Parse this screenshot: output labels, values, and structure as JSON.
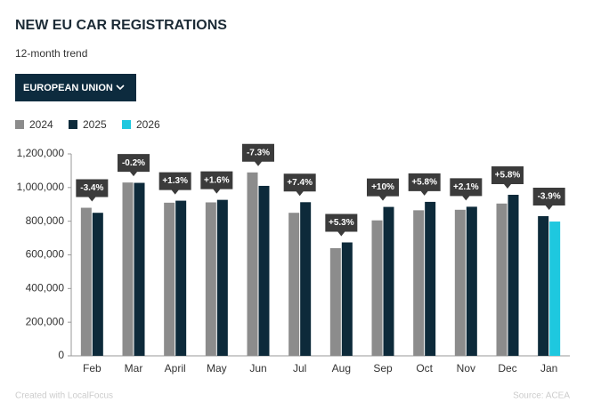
{
  "title": "NEW EU CAR REGISTRATIONS",
  "subtitle": "12-month trend",
  "dropdown": "EUROPEAN UNION",
  "chart_data": {
    "type": "bar",
    "categories": [
      "Feb",
      "Mar",
      "April",
      "May",
      "Jun",
      "Jul",
      "Aug",
      "Sep",
      "Oct",
      "Nov",
      "Dec",
      "Jan"
    ],
    "series": [
      {
        "name": "2024",
        "color": "#8c8c8c",
        "values": [
          880000,
          1030000,
          910000,
          912000,
          1090000,
          850000,
          640000,
          805000,
          865000,
          868000,
          905000,
          null
        ]
      },
      {
        "name": "2025",
        "color": "#0d2a3a",
        "values": [
          850000,
          1028000,
          922000,
          927000,
          1010000,
          913000,
          674000,
          885000,
          915000,
          886000,
          957000,
          830000
        ]
      },
      {
        "name": "2026",
        "color": "#1ec8df",
        "values": [
          null,
          null,
          null,
          null,
          null,
          null,
          null,
          null,
          null,
          null,
          null,
          798000
        ]
      }
    ],
    "change_labels": [
      "-3.4%",
      "-0.2%",
      "+1.3%",
      "+1.6%",
      "-7.3%",
      "+7.4%",
      "+5.3%",
      "+10%",
      "+5.8%",
      "+2.1%",
      "+5.8%",
      "-3.9%"
    ],
    "ylim": [
      0,
      1200000
    ],
    "yticks": [
      0,
      {
        "value": 200000,
        "label": "200,000"
      },
      {
        "value": 400000,
        "label": "400,000"
      },
      {
        "value": 600000,
        "label": "600,000"
      },
      {
        "value": 800000,
        "label": "800,000"
      },
      {
        "value": 1000000,
        "label": "1,000,000"
      },
      {
        "value": 1200000,
        "label": "1,200,000"
      }
    ],
    "grid": false
  },
  "footer": {
    "credit": "Created with LocalFocus",
    "source": "Source:  ACEA"
  }
}
